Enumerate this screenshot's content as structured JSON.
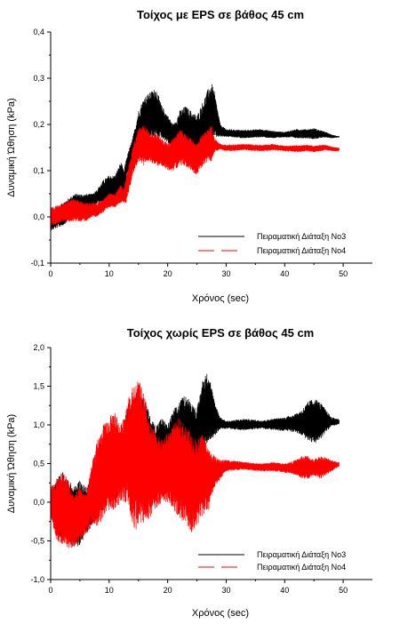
{
  "chart_data": [
    {
      "type": "line",
      "title": "Τοίχος με EPS σε βάθος 45 cm",
      "xlabel": "Χρόνος (sec)",
      "ylabel": "Δυναμική Ώθηση (kPa)",
      "xlim": [
        0,
        55
      ],
      "ylim": [
        -0.1,
        0.4
      ],
      "x_ticks": [
        0,
        10,
        20,
        30,
        40,
        50
      ],
      "y_ticks": [
        -0.1,
        0.0,
        0.1,
        0.2,
        0.3,
        0.4
      ],
      "x_tick_labels": [
        "0",
        "10",
        "20",
        "30",
        "40",
        "50"
      ],
      "y_tick_labels": [
        "-0,1",
        "0,0",
        "0,1",
        "0,2",
        "0,3",
        "0,4"
      ],
      "grid": false,
      "legend_position": "bottom-right",
      "series": [
        {
          "name": "Πειραματική Διάταξη Νο3",
          "color": "#000000",
          "dash": "solid",
          "envelope": {
            "t": [
              0,
              2,
              4,
              6,
              7,
              8,
              9,
              10,
              11,
              12,
              12.5,
              13,
              13.5,
              14,
              15,
              16,
              17,
              18,
              19,
              20,
              21,
              22,
              23,
              24,
              25,
              26,
              27,
              27.5,
              28,
              29,
              30,
              33,
              36,
              38,
              40,
              42,
              44,
              45,
              46,
              47,
              48,
              49
            ],
            "lo": [
              -0.03,
              -0.02,
              0.0,
              0.0,
              0.01,
              0.03,
              0.03,
              0.03,
              0.04,
              0.05,
              0.04,
              0.09,
              0.1,
              0.11,
              0.14,
              0.16,
              0.17,
              0.17,
              0.17,
              0.16,
              0.14,
              0.12,
              0.14,
              0.13,
              0.11,
              0.13,
              0.15,
              0.16,
              0.17,
              0.173,
              0.173,
              0.17,
              0.172,
              0.17,
              0.172,
              0.17,
              0.17,
              0.168,
              0.17,
              0.172,
              0.17,
              0.172
            ],
            "hi": [
              0.01,
              0.03,
              0.05,
              0.05,
              0.05,
              0.06,
              0.08,
              0.09,
              0.09,
              0.12,
              0.1,
              0.13,
              0.15,
              0.17,
              0.23,
              0.26,
              0.27,
              0.28,
              0.24,
              0.22,
              0.2,
              0.23,
              0.24,
              0.23,
              0.22,
              0.25,
              0.28,
              0.29,
              0.27,
              0.2,
              0.19,
              0.188,
              0.19,
              0.186,
              0.184,
              0.19,
              0.19,
              0.192,
              0.188,
              0.184,
              0.178,
              0.175
            ]
          }
        },
        {
          "name": "Πειραματική Διάταξη Νο4",
          "color": "#ff0000",
          "dash": "long-dash",
          "envelope": {
            "t": [
              0,
              2,
              4,
              6,
              7,
              8,
              9,
              10,
              11,
              12,
              12.5,
              13,
              13.5,
              14,
              15,
              16,
              17,
              18,
              19,
              20,
              21,
              22,
              23,
              24,
              25,
              26,
              27,
              27.5,
              28,
              29,
              30,
              33,
              36,
              38,
              40,
              42,
              44,
              45,
              46,
              47,
              48,
              49
            ],
            "lo": [
              -0.02,
              -0.01,
              -0.01,
              -0.01,
              0.0,
              0.0,
              0.01,
              0.02,
              0.02,
              0.03,
              0.03,
              0.03,
              0.06,
              0.09,
              0.12,
              0.11,
              0.12,
              0.11,
              0.11,
              0.1,
              0.1,
              0.11,
              0.11,
              0.1,
              0.09,
              0.11,
              0.12,
              0.12,
              0.14,
              0.145,
              0.142,
              0.144,
              0.142,
              0.144,
              0.142,
              0.14,
              0.142,
              0.14,
              0.142,
              0.144,
              0.142,
              0.142
            ],
            "hi": [
              0.02,
              0.03,
              0.04,
              0.03,
              0.03,
              0.03,
              0.04,
              0.05,
              0.05,
              0.07,
              0.06,
              0.09,
              0.12,
              0.15,
              0.19,
              0.2,
              0.18,
              0.18,
              0.17,
              0.16,
              0.17,
              0.19,
              0.18,
              0.17,
              0.16,
              0.18,
              0.19,
              0.2,
              0.17,
              0.158,
              0.156,
              0.158,
              0.156,
              0.158,
              0.154,
              0.155,
              0.156,
              0.154,
              0.156,
              0.156,
              0.152,
              0.15
            ]
          }
        }
      ]
    },
    {
      "type": "line",
      "title": "Τοίχος χωρίς EPS σε βάθος 45 cm",
      "xlabel": "Χρόνος (sec)",
      "ylabel": "Δυναμική Ώθηση (kPa)",
      "xlim": [
        0,
        55
      ],
      "ylim": [
        -1.0,
        2.0
      ],
      "x_ticks": [
        0,
        10,
        20,
        30,
        40,
        50
      ],
      "y_ticks": [
        -1.0,
        -0.5,
        0.0,
        0.5,
        1.0,
        1.5,
        2.0
      ],
      "x_tick_labels": [
        "0",
        "10",
        "20",
        "30",
        "40",
        "50"
      ],
      "y_tick_labels": [
        "-1,0",
        "-0,5",
        "0,0",
        "0,5",
        "1,0",
        "1,5",
        "2,0"
      ],
      "grid": false,
      "legend_position": "bottom-right",
      "series": [
        {
          "name": "Πειραματική Διάταξη Νο3",
          "color": "#000000",
          "dash": "solid",
          "envelope": {
            "t": [
              0,
              1,
              2,
              3,
              4,
              5,
              6,
              7,
              8,
              9,
              10,
              11,
              12,
              13,
              14,
              15,
              16,
              17,
              18,
              19,
              20,
              21,
              22,
              23,
              24,
              25,
              26,
              27,
              28,
              29,
              30,
              33,
              36,
              38,
              40,
              42,
              43,
              44,
              45,
              46,
              47,
              48,
              49
            ],
            "lo": [
              -0.15,
              -0.4,
              -0.5,
              -0.5,
              -0.6,
              -0.55,
              -0.45,
              -0.3,
              -0.2,
              -0.1,
              0.1,
              0.0,
              0.15,
              0.2,
              0.1,
              0.0,
              0.2,
              0.3,
              0.3,
              0.4,
              0.5,
              0.4,
              0.3,
              0.5,
              0.6,
              0.5,
              0.6,
              0.8,
              0.85,
              0.95,
              0.95,
              0.93,
              0.95,
              0.93,
              0.92,
              0.9,
              0.85,
              0.8,
              0.75,
              0.8,
              0.9,
              0.98,
              1.0
            ],
            "hi": [
              0.1,
              0.3,
              0.4,
              0.3,
              0.2,
              0.3,
              0.2,
              0.3,
              0.7,
              0.9,
              0.9,
              1.0,
              0.8,
              1.2,
              1.4,
              1.5,
              1.4,
              1.1,
              1.0,
              1.1,
              1.0,
              1.2,
              1.3,
              1.4,
              1.3,
              1.2,
              1.6,
              1.7,
              1.3,
              1.1,
              1.05,
              1.08,
              1.06,
              1.08,
              1.1,
              1.15,
              1.2,
              1.3,
              1.35,
              1.3,
              1.2,
              1.1,
              1.08
            ]
          }
        },
        {
          "name": "Πειραματική Διάταξη Νο4",
          "color": "#ff0000",
          "dash": "long-dash",
          "envelope": {
            "t": [
              0,
              1,
              2,
              3,
              4,
              5,
              6,
              7,
              8,
              9,
              10,
              11,
              12,
              13,
              14,
              15,
              16,
              17,
              18,
              19,
              20,
              21,
              22,
              23,
              24,
              25,
              26,
              27,
              28,
              29,
              30,
              33,
              36,
              38,
              40,
              42,
              43,
              44,
              45,
              46,
              47,
              48,
              49
            ],
            "lo": [
              -0.2,
              -0.5,
              -0.55,
              -0.6,
              -0.6,
              -0.5,
              -0.4,
              -0.3,
              -0.35,
              -0.2,
              -0.1,
              -0.1,
              0.0,
              0.0,
              -0.3,
              -0.4,
              -0.3,
              -0.2,
              -0.1,
              0.0,
              0.0,
              -0.1,
              -0.2,
              -0.3,
              -0.4,
              -0.3,
              -0.2,
              -0.1,
              0.2,
              0.3,
              0.4,
              0.42,
              0.4,
              0.4,
              0.38,
              0.35,
              0.3,
              0.3,
              0.35,
              0.3,
              0.35,
              0.4,
              0.45
            ],
            "hi": [
              0.2,
              0.3,
              0.4,
              0.3,
              0.1,
              0.2,
              0.1,
              0.5,
              0.8,
              1.0,
              1.1,
              1.2,
              1.0,
              1.3,
              1.5,
              1.6,
              1.4,
              1.0,
              0.9,
              0.8,
              0.9,
              1.0,
              1.1,
              1.0,
              0.9,
              0.8,
              0.9,
              0.7,
              0.6,
              0.55,
              0.55,
              0.52,
              0.5,
              0.52,
              0.5,
              0.55,
              0.6,
              0.6,
              0.55,
              0.6,
              0.58,
              0.55,
              0.52
            ]
          }
        }
      ]
    }
  ]
}
